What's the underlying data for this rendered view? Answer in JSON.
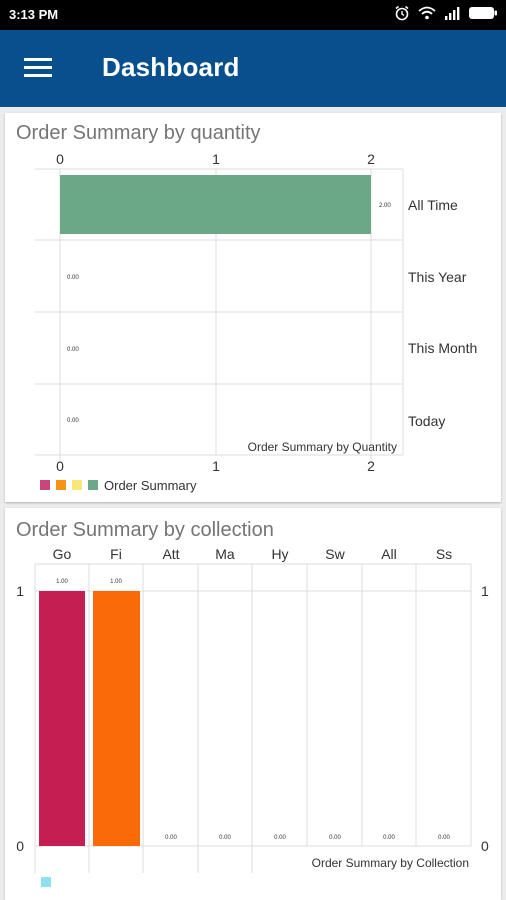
{
  "status_bar": {
    "time": "3:13 PM"
  },
  "app_bar": {
    "title": "Dashboard"
  },
  "card1": {
    "title": "Order Summary by quantity",
    "chart_data": {
      "type": "bar",
      "orientation": "horizontal",
      "categories": [
        "All Time",
        "This Year",
        "This Month",
        "Today"
      ],
      "values": [
        2,
        0,
        0,
        0
      ],
      "value_labels": [
        "2.00",
        "0.00",
        "0.00",
        "0.00"
      ],
      "x_ticks": [
        "0",
        "1",
        "2"
      ],
      "xlim": [
        0,
        2
      ],
      "chart_title": "Order Summary by Quantity",
      "legend_label": "Order Summary",
      "legend_colors": [
        "#c9467a",
        "#f59317",
        "#fbe67a",
        "#6aa887"
      ],
      "bar_color": "#6aa887",
      "grid": true
    }
  },
  "card2": {
    "title": "Order Summary by collection",
    "chart_data": {
      "type": "bar",
      "categories": [
        "Go",
        "Fi",
        "Att",
        "Ma",
        "Hy",
        "Sw",
        "All",
        "Ss"
      ],
      "values": [
        1,
        1,
        0,
        0,
        0,
        0,
        0,
        0
      ],
      "value_labels": [
        "1.00",
        "1.00",
        "0.00",
        "0.00",
        "0.00",
        "0.00",
        "0.00",
        "0.00"
      ],
      "y_ticks": [
        "0",
        "1"
      ],
      "ylim": [
        0,
        1
      ],
      "chart_title": "Order Summary by Collection",
      "colors": [
        "#c41e52",
        "#fb6a08"
      ],
      "legend_color": "#8fdff5",
      "grid": true
    }
  }
}
